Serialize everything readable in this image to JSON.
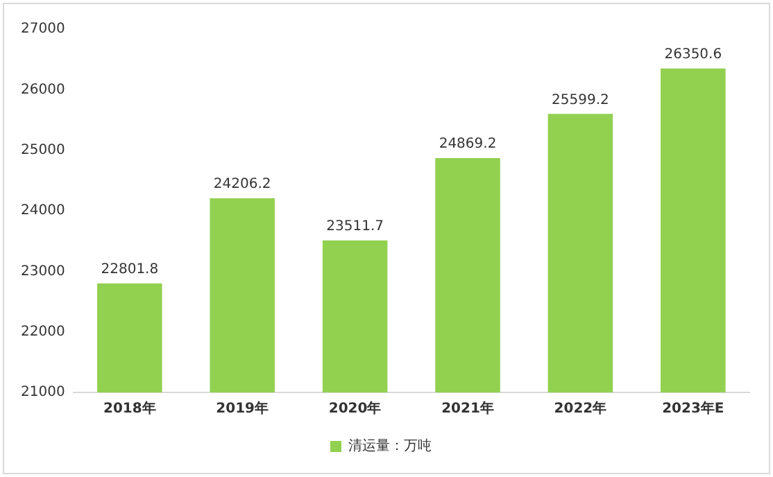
{
  "chart_data": {
    "type": "bar",
    "categories": [
      "2018年",
      "2019年",
      "2020年",
      "2021年",
      "2022年",
      "2023年E"
    ],
    "series": [
      {
        "name": "清运量：万吨",
        "color": "#92d050",
        "values": [
          22801.8,
          24206.2,
          23511.7,
          24869.2,
          25599.2,
          26350.6
        ]
      }
    ],
    "ylim": [
      21000,
      27000
    ],
    "yticks": [
      21000,
      22000,
      23000,
      24000,
      25000,
      26000,
      27000
    ],
    "grid": false,
    "legend": "bottom",
    "data_labels": true
  }
}
